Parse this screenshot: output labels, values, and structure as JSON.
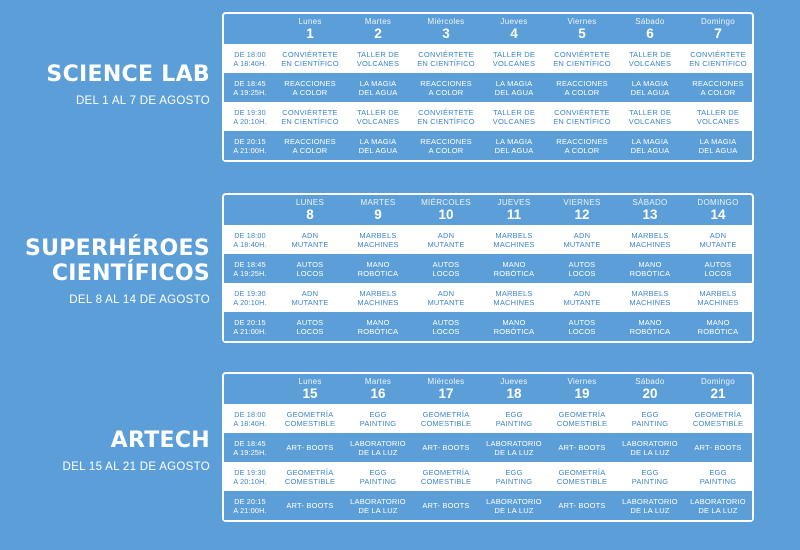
{
  "sections": [
    {
      "title": "SCIENCE LAB",
      "subtitle": "DEL 1 AL 7 DE AGOSTO",
      "days": [
        {
          "name": "Lunes",
          "date": "1"
        },
        {
          "name": "Martes",
          "date": "2"
        },
        {
          "name": "Miércoles",
          "date": "3"
        },
        {
          "name": "Jueves",
          "date": "4"
        },
        {
          "name": "Viernes",
          "date": "5"
        },
        {
          "name": "Sábado",
          "date": "6"
        },
        {
          "name": "Domingo",
          "date": "7"
        }
      ],
      "rows": [
        {
          "time": "DE 18:00\nA 18:40H.",
          "cells": [
            "CONVIÉRTETE\nEN CIENTÍFICO",
            "TALLER DE\nVOLCANES",
            "CONVIÉRTETE\nEN CIENTÍFICO",
            "TALLER DE\nVOLCANES",
            "CONVIÉRTETE\nEN CIENTÍFICO",
            "TALLER DE\nVOLCANES",
            "CONVIÉRTETE\nEN CIENTÍFICO"
          ]
        },
        {
          "time": "DE 18:45\nA 19:25H.",
          "cells": [
            "REACCIONES\nA COLOR",
            "LA MAGIA\nDEL AGUA",
            "REACCIONES\nA COLOR",
            "LA MAGIA\nDEL AGUA",
            "REACCIONES\nA COLOR",
            "LA MAGIA\nDEL AGUA",
            "REACCIONES\nA COLOR"
          ]
        },
        {
          "time": "DE 19:30\nA 20:10H.",
          "cells": [
            "CONVIÉRTETE\nEN CIENTÍFICO",
            "TALLER DE\nVOLCANES",
            "CONVIÉRTETE\nEN CIENTÍFICO",
            "TALLER DE\nVOLCANES",
            "CONVIÉRTETE\nEN CIENTÍFICO",
            "TALLER DE\nVOLCANES",
            "TALLER DE\nVOLCANES"
          ]
        },
        {
          "time": "DE 20:15\nA 21:00H.",
          "cells": [
            "REACCIONES\nA COLOR",
            "LA MAGIA\nDEL AGUA",
            "REACCIONES\nA COLOR",
            "LA MAGIA\nDEL AGUA",
            "REACCIONES\nA COLOR",
            "LA MAGIA\nDEL AGUA",
            "LA MAGIA\nDEL AGUA"
          ]
        }
      ]
    },
    {
      "title": "SUPERHÉROES\nCIENTÍFICOS",
      "subtitle": "DEL 8 AL 14 DE AGOSTO",
      "days": [
        {
          "name": "LUNES",
          "date": "8"
        },
        {
          "name": "MARTES",
          "date": "9"
        },
        {
          "name": "MIÉRCOLES",
          "date": "10"
        },
        {
          "name": "JUEVES",
          "date": "11"
        },
        {
          "name": "VIERNES",
          "date": "12"
        },
        {
          "name": "SÁBADO",
          "date": "13"
        },
        {
          "name": "DOMINGO",
          "date": "14"
        }
      ],
      "rows": [
        {
          "time": "DE 18:00\nA 18:40H.",
          "cells": [
            "ADN\nMUTANTE",
            "MARBELS\nMACHINES",
            "ADN\nMUTANTE",
            "MARBELS\nMACHINES",
            "ADN\nMUTANTE",
            "MARBELS\nMACHINES",
            "ADN\nMUTANTE"
          ]
        },
        {
          "time": "DE 18:45\nA 19:25H.",
          "cells": [
            "AUTOS\nLOCOS",
            "MANO\nROBÓTICA",
            "AUTOS\nLOCOS",
            "MANO\nROBÓTICA",
            "AUTOS\nLOCOS",
            "MANO\nROBÓTICA",
            "AUTOS\nLOCOS"
          ]
        },
        {
          "time": "DE 19:30\nA 20:10H.",
          "cells": [
            "ADN\nMUTANTE",
            "MARBELS\nMACHINES",
            "ADN\nMUTANTE",
            "MARBELS\nMACHINES",
            "ADN\nMUTANTE",
            "MARBELS\nMACHINES",
            "MARBELS\nMACHINES"
          ]
        },
        {
          "time": "DE 20:15\nA 21:00H.",
          "cells": [
            "AUTOS\nLOCOS",
            "MANO\nROBÓTICA",
            "AUTOS\nLOCOS",
            "MANO\nROBÓTICA",
            "AUTOS\nLOCOS",
            "MANO\nROBÓTICA",
            "MANO\nROBÓTICA"
          ]
        }
      ]
    },
    {
      "title": "ARTECH",
      "subtitle": "DEL 15 AL 21 DE AGOSTO",
      "days": [
        {
          "name": "Lunes",
          "date": "15"
        },
        {
          "name": "Martes",
          "date": "16"
        },
        {
          "name": "Miércoles",
          "date": "17"
        },
        {
          "name": "Jueves",
          "date": "18"
        },
        {
          "name": "Viernes",
          "date": "19"
        },
        {
          "name": "Sábado",
          "date": "20"
        },
        {
          "name": "Domingo",
          "date": "21"
        }
      ],
      "rows": [
        {
          "time": "DE 18:00\nA 18:40H.",
          "cells": [
            "GEOMETRÍA\nCOMESTIBLE",
            "EGG\nPAINTING",
            "GEOMETRÍA\nCOMESTIBLE",
            "EGG\nPAINTING",
            "GEOMETRÍA\nCOMESTIBLE",
            "EGG\nPAINTING",
            "GEOMETRÍA\nCOMESTIBLE"
          ]
        },
        {
          "time": "DE 18:45\nA 19:25H.",
          "cells": [
            "ART- BOOTS",
            "LABORATORIO\nDE LA LUZ",
            "ART- BOOTS",
            "LABORATORIO\nDE LA LUZ",
            "ART- BOOTS",
            "LABORATORIO\nDE LA LUZ",
            "ART- BOOTS"
          ]
        },
        {
          "time": "DE 19:30\nA 20:10H.",
          "cells": [
            "GEOMETRÍA\nCOMESTIBLE",
            "EGG\nPAINTING",
            "GEOMETRÍA\nCOMESTIBLE",
            "EGG\nPAINTING",
            "GEOMETRÍA\nCOMESTIBLE",
            "EGG\nPAINTING",
            "EGG\nPAINTING"
          ]
        },
        {
          "time": "DE 20:15\nA 21:00H.",
          "cells": [
            "ART- BOOTS",
            "LABORATORIO\nDE LA LUZ",
            "ART- BOOTS",
            "LABORATORIO\nDE LA LUZ",
            "ART- BOOTS",
            "LABORATORIO\nDE LA LUZ",
            "LABORATORIO\nDE LA LUZ"
          ]
        }
      ]
    }
  ]
}
